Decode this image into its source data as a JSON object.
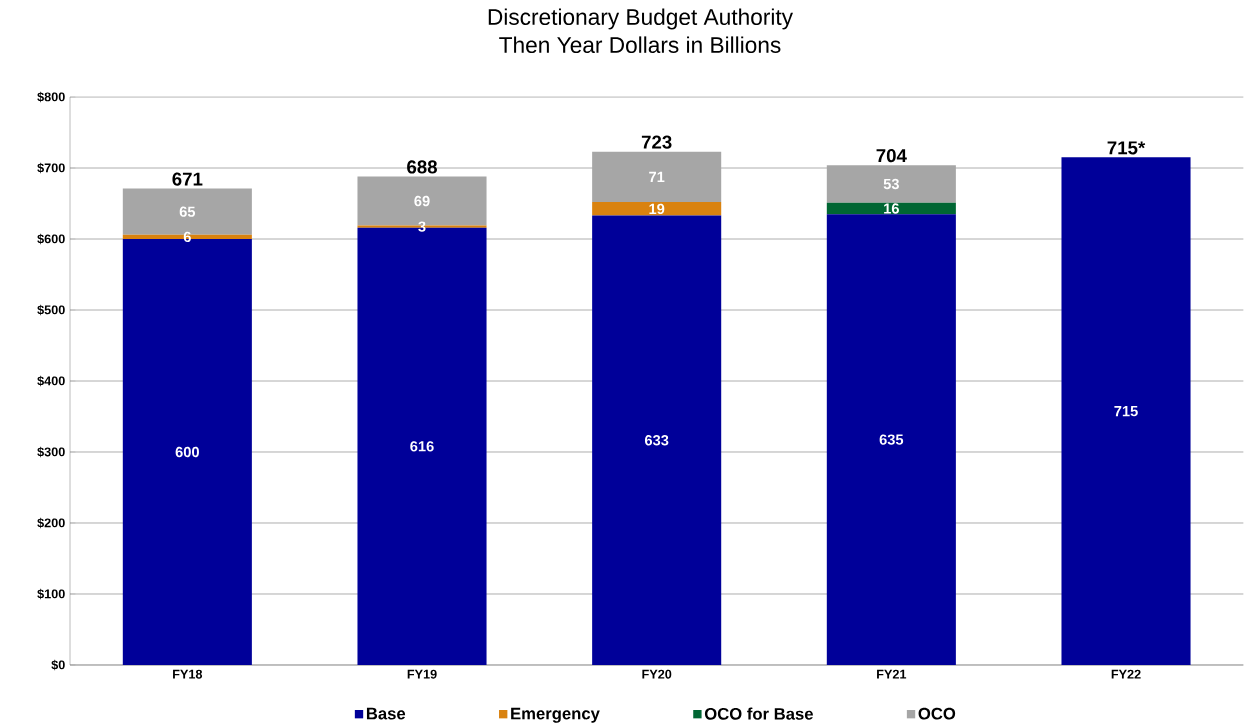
{
  "chart_data": {
    "type": "bar",
    "title": "Discretionary Budget Authority",
    "subtitle": "Then Year Dollars in Billions",
    "categories": [
      "FY18",
      "FY19",
      "FY20",
      "FY21",
      "FY22"
    ],
    "stacked": true,
    "series": [
      {
        "name": "Base",
        "color": "#000099",
        "values": [
          600,
          616,
          633,
          635,
          715
        ]
      },
      {
        "name": "Emergency",
        "color": "#d9820f",
        "values": [
          6,
          3,
          19,
          null,
          null
        ]
      },
      {
        "name": "OCO for Base",
        "color": "#006633",
        "values": [
          null,
          null,
          null,
          16,
          null
        ]
      },
      {
        "name": "OCO",
        "color": "#a6a6a6",
        "values": [
          65,
          69,
          71,
          53,
          null
        ]
      }
    ],
    "totals": [
      "671",
      "688",
      "723",
      "704",
      "715*"
    ],
    "data_labels": true,
    "ylim": [
      0,
      800
    ],
    "yticks": [
      {
        "value": 0,
        "label": "$0"
      },
      {
        "value": 100,
        "label": "$100"
      },
      {
        "value": 200,
        "label": "$200"
      },
      {
        "value": 300,
        "label": "$300"
      },
      {
        "value": 400,
        "label": "$400"
      },
      {
        "value": 500,
        "label": "$500"
      },
      {
        "value": 600,
        "label": "$600"
      },
      {
        "value": 700,
        "label": "$700"
      },
      {
        "value": 800,
        "label": "$800"
      }
    ],
    "grid": "y",
    "legend": "bottom"
  }
}
